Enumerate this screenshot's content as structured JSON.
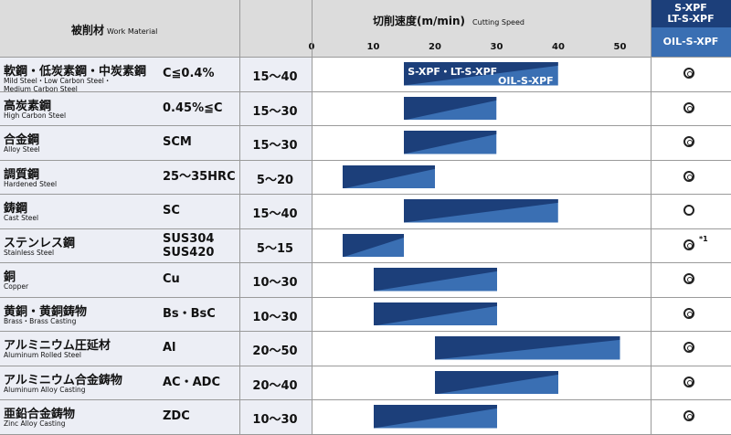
{
  "header": {
    "material_jp": "被削材",
    "material_en": "Work Material",
    "speed_jp": "切削速度(m/min)",
    "speed_en": "Cutting Speed",
    "ticks": [
      "0",
      "10",
      "20",
      "30",
      "40",
      "50"
    ],
    "brand_top": [
      "S-XPF",
      "LT-S-XPF"
    ],
    "brand_bottom": "OIL-S-XPF"
  },
  "first_bar_labels": {
    "top": "S-XPF・LT-S-XPF",
    "bottom": "OIL-S-XPF"
  },
  "colors": {
    "dark_blue": "#1c3f7a",
    "light_blue": "#3a6fb3",
    "header_bg": "#dcdcdc",
    "row_bg": "#eceef5"
  },
  "rows": [
    {
      "jp": "軟鋼・低炭素鋼・中炭素鋼",
      "en": "Mild Steel・Low Carbon Steel・\nMedium Carbon Steel",
      "grade": "C≦0.4%",
      "speed": "15～40",
      "min": 15,
      "max": 40,
      "mark": "double-circle",
      "note": ""
    },
    {
      "jp": "高炭素鋼",
      "en": "High Carbon Steel",
      "grade": "0.45%≦C",
      "speed": "15～30",
      "min": 15,
      "max": 30,
      "mark": "double-circle",
      "note": ""
    },
    {
      "jp": "合金鋼",
      "en": "Alloy Steel",
      "grade": "SCM",
      "speed": "15～30",
      "min": 15,
      "max": 30,
      "mark": "double-circle",
      "note": ""
    },
    {
      "jp": "調質鋼",
      "en": "Hardened Steel",
      "grade": "25～35HRC",
      "speed": "5～20",
      "min": 5,
      "max": 20,
      "mark": "double-circle",
      "note": ""
    },
    {
      "jp": "鋳鋼",
      "en": "Cast Steel",
      "grade": "SC",
      "speed": "15～40",
      "min": 15,
      "max": 40,
      "mark": "circle",
      "note": ""
    },
    {
      "jp": "ステンレス鋼",
      "en": "Stainless Steel",
      "grade": "SUS304\nSUS420",
      "speed": "5～15",
      "min": 5,
      "max": 15,
      "mark": "double-circle",
      "note": "*1"
    },
    {
      "jp": "銅",
      "en": "Copper",
      "grade": "Cu",
      "speed": "10～30",
      "min": 10,
      "max": 30,
      "mark": "double-circle",
      "note": ""
    },
    {
      "jp": "黄銅・黄銅鋳物",
      "en": "Brass・Brass Casting",
      "grade": "Bs・BsC",
      "speed": "10～30",
      "min": 10,
      "max": 30,
      "mark": "double-circle",
      "note": ""
    },
    {
      "jp": "アルミニウム圧延材",
      "en": "Aluminum Rolled Steel",
      "grade": "Al",
      "speed": "20～50",
      "min": 20,
      "max": 50,
      "mark": "double-circle",
      "note": ""
    },
    {
      "jp": "アルミニウム合金鋳物",
      "en": "Aluminum Alloy Casting",
      "grade": "AC・ADC",
      "speed": "20～40",
      "min": 20,
      "max": 40,
      "mark": "double-circle",
      "note": ""
    },
    {
      "jp": "亜鉛合金鋳物",
      "en": "Zinc Alloy Casting",
      "grade": "ZDC",
      "speed": "10～30",
      "min": 10,
      "max": 30,
      "mark": "double-circle",
      "note": ""
    }
  ]
}
